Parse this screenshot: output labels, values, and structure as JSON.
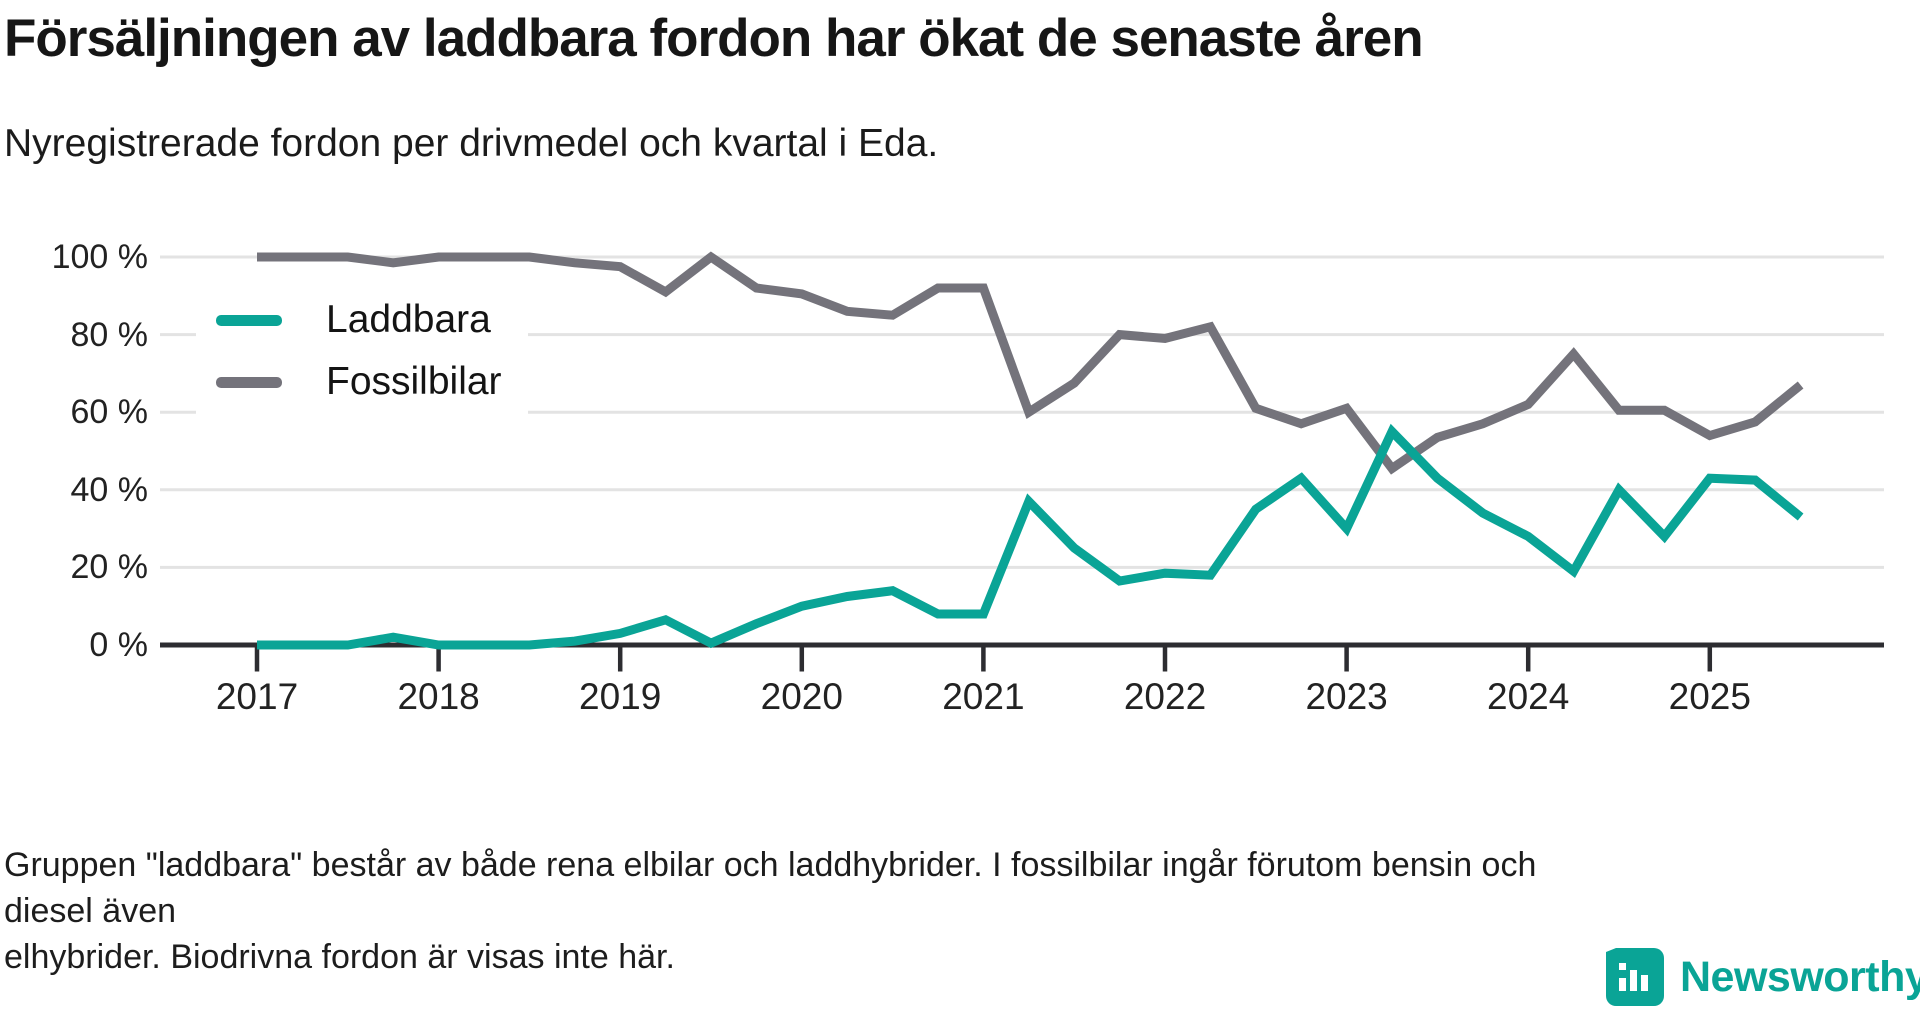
{
  "header": {
    "title": "Försäljningen av laddbara fordon har ökat de senaste åren",
    "subtitle": "Nyregistrerade fordon per drivmedel och kvartal i Eda."
  },
  "chart_data": {
    "type": "line",
    "unit": "percent of newly registered vehicles",
    "x_start": "2017 Q1",
    "x_end": "2025 Q3",
    "points_per_year": 4,
    "x_tick_labels": [
      "2017",
      "2018",
      "2019",
      "2020",
      "2021",
      "2022",
      "2023",
      "2024",
      "2025"
    ],
    "y_ticks": [
      0,
      20,
      40,
      60,
      80,
      100
    ],
    "y_tick_labels": [
      "0 %",
      "20 %",
      "40 %",
      "60 %",
      "80 %",
      "100 %"
    ],
    "ylim": [
      0,
      100
    ],
    "grid": true,
    "legend_position": "top-left",
    "series": [
      {
        "name": "Laddbara",
        "color": "#0aa496",
        "values": [
          0,
          0,
          0,
          2,
          0,
          0,
          0,
          1,
          3,
          6.5,
          0.5,
          5.5,
          10,
          12.5,
          14,
          8,
          8,
          37,
          25,
          16.5,
          18.5,
          18,
          35,
          43,
          30,
          55,
          43,
          34,
          28,
          19,
          40,
          28,
          43,
          42.5,
          33
        ]
      },
      {
        "name": "Fossilbilar",
        "color": "#74737b",
        "values": [
          100,
          100,
          100,
          98.5,
          100,
          100,
          100,
          98.5,
          97.5,
          91,
          100,
          92,
          90.5,
          86,
          85,
          92,
          92,
          60,
          67.5,
          80,
          79,
          82,
          61,
          57,
          61,
          45.5,
          53.5,
          57,
          62,
          75,
          60.5,
          60.5,
          54,
          57.5,
          67
        ]
      }
    ]
  },
  "legend": {
    "items": [
      {
        "label": "Laddbara",
        "color": "#0aa496"
      },
      {
        "label": "Fossilbilar",
        "color": "#74737b"
      }
    ]
  },
  "footer": {
    "lines": [
      "Gruppen \"laddbara\" består av både rena elbilar och laddhybrider. I fossilbilar ingår förutom bensin och diesel även",
      "elhybrider. Biodrivna fordon är visas inte här."
    ]
  },
  "branding": {
    "wordmark": "Newsworthy",
    "icon": "bar-chart-logo-icon",
    "color": "#0aa496"
  },
  "colors": {
    "accent_teal": "#0aa496",
    "series_gray": "#74737b",
    "gridline": "#e3e3e3",
    "axis": "#2d2d31",
    "text": "#1a1a1a"
  }
}
